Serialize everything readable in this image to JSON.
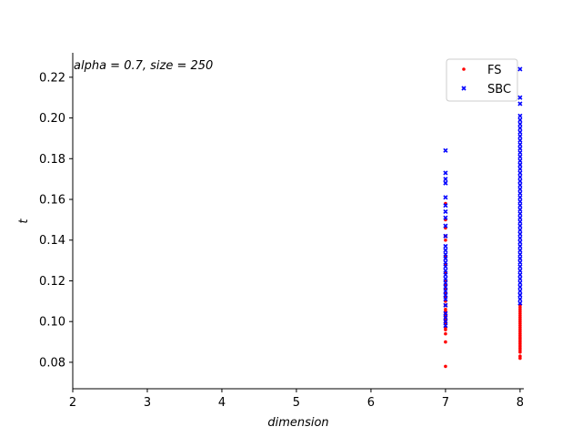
{
  "chart_data": {
    "type": "scatter",
    "annotation": "alpha = 0.7, size = 250",
    "xlabel": "dimension",
    "ylabel": "t",
    "xlim": [
      2,
      8.05
    ],
    "ylim": [
      0.067,
      0.232
    ],
    "xticks": [
      "2",
      "3",
      "4",
      "5",
      "6",
      "7",
      "8"
    ],
    "yticks": [
      "0.08",
      "0.10",
      "0.12",
      "0.14",
      "0.16",
      "0.18",
      "0.20",
      "0.22"
    ],
    "legend_position": "top-right",
    "grid": false,
    "series": [
      {
        "name": "FS",
        "color": "#ff0000",
        "marker": "dot",
        "points": [
          [
            7,
            0.078
          ],
          [
            7,
            0.09
          ],
          [
            7,
            0.094
          ],
          [
            7,
            0.096
          ],
          [
            7,
            0.097
          ],
          [
            7,
            0.099
          ],
          [
            7,
            0.1
          ],
          [
            7,
            0.101
          ],
          [
            7,
            0.102
          ],
          [
            7,
            0.103
          ],
          [
            7,
            0.104
          ],
          [
            7,
            0.105
          ],
          [
            7,
            0.106
          ],
          [
            7,
            0.108
          ],
          [
            7,
            0.11
          ],
          [
            7,
            0.112
          ],
          [
            7,
            0.114
          ],
          [
            7,
            0.116
          ],
          [
            7,
            0.118
          ],
          [
            7,
            0.12
          ],
          [
            7,
            0.124
          ],
          [
            7,
            0.128
          ],
          [
            7,
            0.132
          ],
          [
            7,
            0.14
          ],
          [
            7,
            0.142
          ],
          [
            7,
            0.146
          ],
          [
            7,
            0.15
          ],
          [
            7,
            0.158
          ],
          [
            8,
            0.082
          ],
          [
            8,
            0.083
          ],
          [
            8,
            0.085
          ],
          [
            8,
            0.086
          ],
          [
            8,
            0.087
          ],
          [
            8,
            0.088
          ],
          [
            8,
            0.089
          ],
          [
            8,
            0.09
          ],
          [
            8,
            0.091
          ],
          [
            8,
            0.092
          ],
          [
            8,
            0.093
          ],
          [
            8,
            0.094
          ],
          [
            8,
            0.095
          ],
          [
            8,
            0.096
          ],
          [
            8,
            0.097
          ],
          [
            8,
            0.098
          ],
          [
            8,
            0.099
          ],
          [
            8,
            0.1
          ],
          [
            8,
            0.101
          ],
          [
            8,
            0.102
          ],
          [
            8,
            0.103
          ],
          [
            8,
            0.104
          ],
          [
            8,
            0.105
          ],
          [
            8,
            0.106
          ],
          [
            8,
            0.107
          ],
          [
            8,
            0.108
          ]
        ]
      },
      {
        "name": "SBC",
        "color": "#0000ff",
        "marker": "x",
        "points": [
          [
            7,
            0.098
          ],
          [
            7,
            0.1
          ],
          [
            7,
            0.102
          ],
          [
            7,
            0.104
          ],
          [
            7,
            0.108
          ],
          [
            7,
            0.111
          ],
          [
            7,
            0.113
          ],
          [
            7,
            0.115
          ],
          [
            7,
            0.117
          ],
          [
            7,
            0.119
          ],
          [
            7,
            0.121
          ],
          [
            7,
            0.123
          ],
          [
            7,
            0.125
          ],
          [
            7,
            0.127
          ],
          [
            7,
            0.129
          ],
          [
            7,
            0.131
          ],
          [
            7,
            0.133
          ],
          [
            7,
            0.135
          ],
          [
            7,
            0.137
          ],
          [
            7,
            0.142
          ],
          [
            7,
            0.147
          ],
          [
            7,
            0.151
          ],
          [
            7,
            0.154
          ],
          [
            7,
            0.157
          ],
          [
            7,
            0.161
          ],
          [
            7,
            0.168
          ],
          [
            7,
            0.17
          ],
          [
            7,
            0.173
          ],
          [
            7,
            0.184
          ],
          [
            8,
            0.109
          ],
          [
            8,
            0.111
          ],
          [
            8,
            0.113
          ],
          [
            8,
            0.115
          ],
          [
            8,
            0.117
          ],
          [
            8,
            0.119
          ],
          [
            8,
            0.121
          ],
          [
            8,
            0.123
          ],
          [
            8,
            0.125
          ],
          [
            8,
            0.127
          ],
          [
            8,
            0.129
          ],
          [
            8,
            0.131
          ],
          [
            8,
            0.133
          ],
          [
            8,
            0.135
          ],
          [
            8,
            0.137
          ],
          [
            8,
            0.139
          ],
          [
            8,
            0.141
          ],
          [
            8,
            0.143
          ],
          [
            8,
            0.145
          ],
          [
            8,
            0.147
          ],
          [
            8,
            0.149
          ],
          [
            8,
            0.151
          ],
          [
            8,
            0.153
          ],
          [
            8,
            0.155
          ],
          [
            8,
            0.157
          ],
          [
            8,
            0.159
          ],
          [
            8,
            0.161
          ],
          [
            8,
            0.163
          ],
          [
            8,
            0.165
          ],
          [
            8,
            0.167
          ],
          [
            8,
            0.169
          ],
          [
            8,
            0.171
          ],
          [
            8,
            0.173
          ],
          [
            8,
            0.175
          ],
          [
            8,
            0.177
          ],
          [
            8,
            0.179
          ],
          [
            8,
            0.181
          ],
          [
            8,
            0.183
          ],
          [
            8,
            0.185
          ],
          [
            8,
            0.187
          ],
          [
            8,
            0.189
          ],
          [
            8,
            0.191
          ],
          [
            8,
            0.193
          ],
          [
            8,
            0.195
          ],
          [
            8,
            0.197
          ],
          [
            8,
            0.199
          ],
          [
            8,
            0.201
          ],
          [
            8,
            0.207
          ],
          [
            8,
            0.21
          ],
          [
            8,
            0.224
          ]
        ]
      }
    ]
  }
}
